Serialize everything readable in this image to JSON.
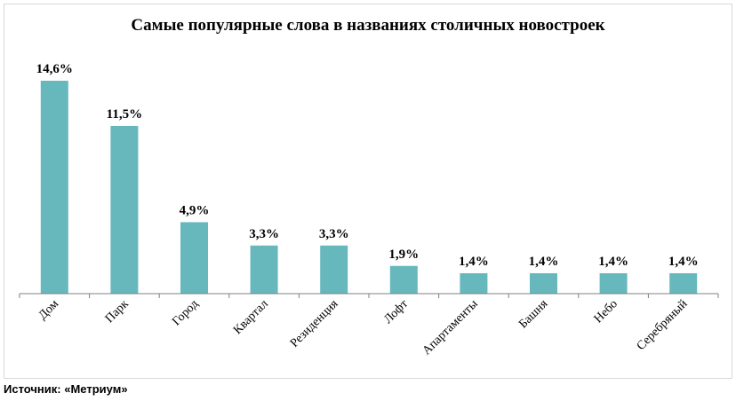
{
  "chart_data": {
    "type": "bar",
    "title": "Самые популярные слова в названиях  столичных новостроек",
    "categories": [
      "Дом",
      "Парк",
      "Город",
      "Квартал",
      "Резиденция",
      "Лофт",
      "Апартаменты",
      "Башня",
      "Небо",
      "Серебряный"
    ],
    "values": [
      14.6,
      11.5,
      4.9,
      3.3,
      3.3,
      1.9,
      1.4,
      1.4,
      1.4,
      1.4
    ],
    "data_labels": [
      "14,6%",
      "11,5%",
      "4,9%",
      "3,3%",
      "3,3%",
      "1,9%",
      "1,4%",
      "1,4%",
      "1,4%",
      "1,4%"
    ],
    "xlabel": "",
    "ylabel": "",
    "ylim": [
      0,
      15
    ],
    "grid": false,
    "legend": "none",
    "bar_color": "#66b8bd"
  },
  "footer": {
    "source": "Источник: «Метриум»"
  }
}
